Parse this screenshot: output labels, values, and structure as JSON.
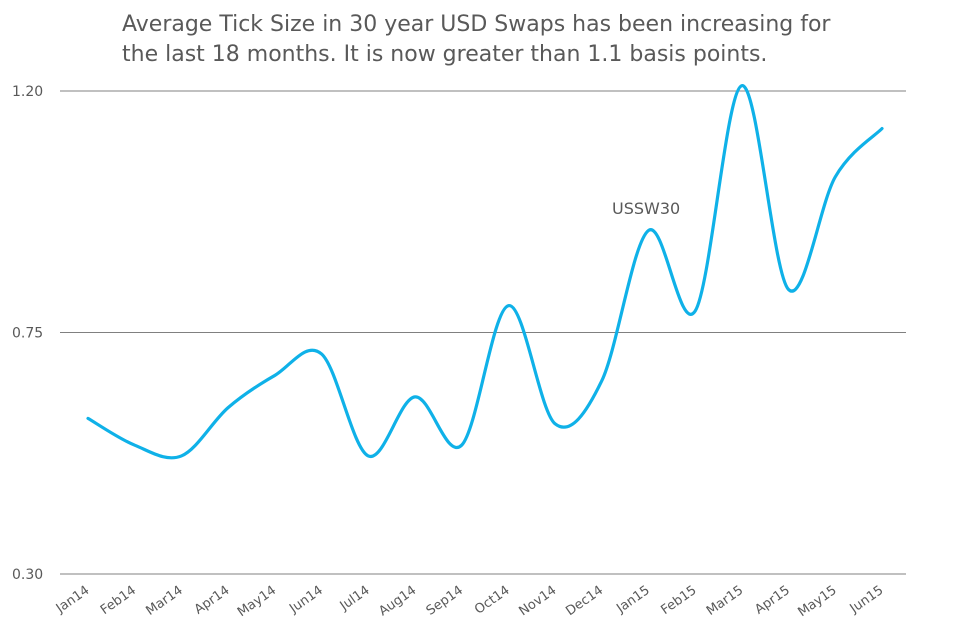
{
  "chart_data": {
    "type": "line",
    "title_lines": [
      "Average Tick Size in 30 year USD Swaps has been increasing for",
      "the last 18 months. It is now greater than 1.1 basis points."
    ],
    "xlabel": "",
    "ylabel": "",
    "categories": [
      "Jan14",
      "Feb14",
      "Mar14",
      "Apr14",
      "May14",
      "Jun14",
      "Jul14",
      "Aug14",
      "Sep14",
      "Oct14",
      "Nov14",
      "Dec14",
      "Jan15",
      "Feb15",
      "Mar15",
      "Apr15",
      "May15",
      "Jun15"
    ],
    "ylim": [
      0.3,
      1.2
    ],
    "yticks": [
      "0.30",
      "0.75",
      "1.20"
    ],
    "grid": true,
    "series": [
      {
        "name": "USSW30",
        "color": "#0fb1e8",
        "values": [
          0.59,
          0.54,
          0.52,
          0.61,
          0.67,
          0.71,
          0.52,
          0.63,
          0.54,
          0.8,
          0.58,
          0.66,
          0.94,
          0.79,
          1.21,
          0.83,
          1.04,
          1.13
        ]
      }
    ]
  }
}
